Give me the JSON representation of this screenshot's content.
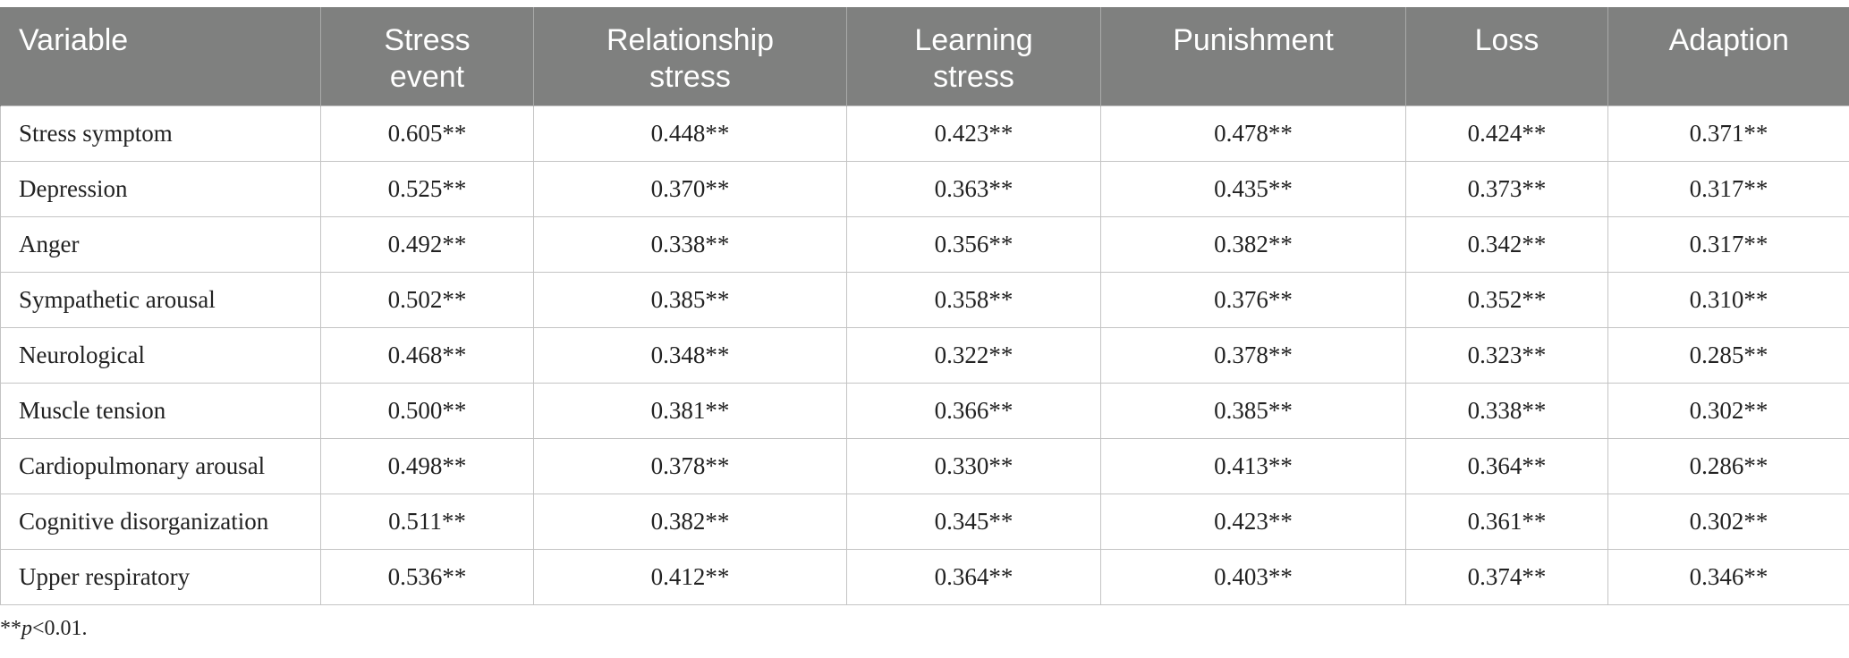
{
  "table": {
    "headers": [
      [
        "Variable"
      ],
      [
        "Stress",
        "event"
      ],
      [
        "Relationship",
        "stress"
      ],
      [
        "Learning",
        "stress"
      ],
      [
        "Punishment"
      ],
      [
        "Loss"
      ],
      [
        "Adaption"
      ]
    ],
    "rows": [
      [
        "Stress symptom",
        "0.605**",
        "0.448**",
        "0.423**",
        "0.478**",
        "0.424**",
        "0.371**"
      ],
      [
        "Depression",
        "0.525**",
        "0.370**",
        "0.363**",
        "0.435**",
        "0.373**",
        "0.317**"
      ],
      [
        "Anger",
        "0.492**",
        "0.338**",
        "0.356**",
        "0.382**",
        "0.342**",
        "0.317**"
      ],
      [
        "Sympathetic arousal",
        "0.502**",
        "0.385**",
        "0.358**",
        "0.376**",
        "0.352**",
        "0.310**"
      ],
      [
        "Neurological",
        "0.468**",
        "0.348**",
        "0.322**",
        "0.378**",
        "0.323**",
        "0.285**"
      ],
      [
        "Muscle tension",
        "0.500**",
        "0.381**",
        "0.366**",
        "0.385**",
        "0.338**",
        "0.302**"
      ],
      [
        "Cardiopulmonary arousal",
        "0.498**",
        "0.378**",
        "0.330**",
        "0.413**",
        "0.364**",
        "0.286**"
      ],
      [
        "Cognitive disorganization",
        "0.511**",
        "0.382**",
        "0.345**",
        "0.423**",
        "0.361**",
        "0.302**"
      ],
      [
        "Upper respiratory",
        "0.536**",
        "0.412**",
        "0.364**",
        "0.403**",
        "0.374**",
        "0.346**"
      ]
    ]
  },
  "footnote": {
    "prefix": "**",
    "italic": "p",
    "suffix": "<0.01."
  },
  "colors": {
    "header_bg": "#7f807f",
    "header_text": "#ffffff",
    "grid": "#c4c4c4"
  }
}
